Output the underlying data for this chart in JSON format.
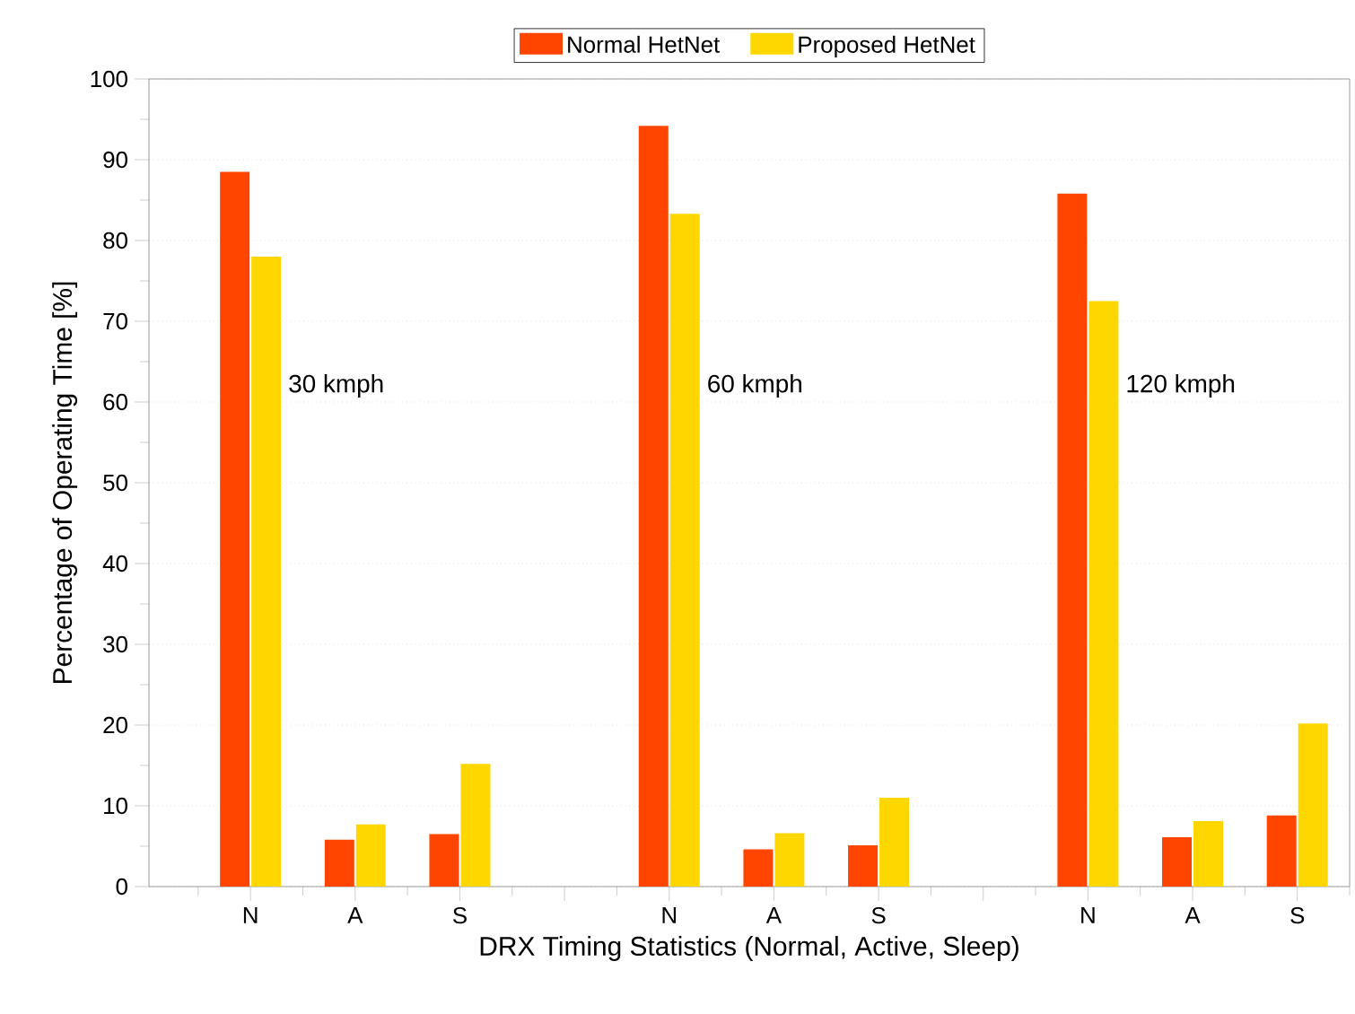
{
  "chart_data": {
    "type": "bar",
    "xlabel": "DRX Timing Statistics (Normal, Active, Sleep)",
    "ylabel": "Percentage of Operating Time [%]",
    "categories": [
      "N",
      "A",
      "S",
      null,
      "N",
      "A",
      "S",
      null,
      "N",
      "A",
      "S"
    ],
    "series": [
      {
        "name": "Normal HetNet",
        "color": "#ff4500",
        "values": [
          88.5,
          5.8,
          6.5,
          null,
          94.2,
          4.6,
          5.1,
          null,
          85.8,
          6.1,
          8.8
        ]
      },
      {
        "name": "Proposed HetNet",
        "color": "#ffd700",
        "values": [
          78,
          7.7,
          15.2,
          null,
          83.3,
          6.6,
          11.0,
          null,
          72.5,
          8.1,
          20.2
        ]
      }
    ],
    "annotations": [
      "30 kmph",
      "60 kmph",
      "120 kmph"
    ],
    "ylim": [
      0,
      100
    ],
    "yticks": [
      0,
      10,
      20,
      30,
      40,
      50,
      60,
      70,
      80,
      90,
      100
    ],
    "grid": "y",
    "legend": "top"
  }
}
